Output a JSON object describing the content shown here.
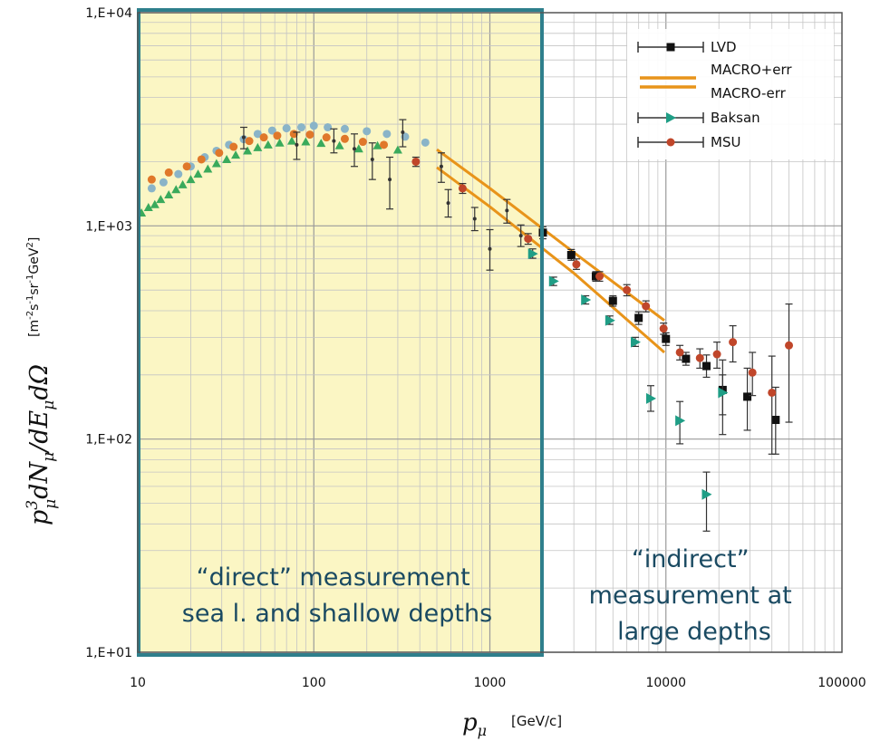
{
  "chart_data": {
    "type": "scatter",
    "x_scale": "log",
    "y_scale": "log",
    "xlim": [
      10,
      100000
    ],
    "ylim": [
      10,
      10000
    ],
    "x_ticks": [
      {
        "value": 10,
        "label": "10"
      },
      {
        "value": 100,
        "label": "100"
      },
      {
        "value": 1000,
        "label": "1000"
      },
      {
        "value": 10000,
        "label": "10000"
      },
      {
        "value": 100000,
        "label": "100000"
      }
    ],
    "y_ticks": [
      {
        "value": 10,
        "label": "1,E+01"
      },
      {
        "value": 100,
        "label": "1,E+02"
      },
      {
        "value": 1000,
        "label": "1,E+03"
      },
      {
        "value": 10000,
        "label": "1,E+04"
      }
    ],
    "ylabel": {
      "lead": "p",
      "sup": "3",
      "sub": "μ",
      "rest": "dN",
      "rest_sub": "μ",
      "tail": "/dE",
      "tail_sub": "μ",
      "end": "dΩ",
      "units_prefix": "[m",
      "units_e1": "-2",
      "units_s": "s",
      "units_e2": "-1",
      "units_sr": "sr",
      "units_e3": "-1",
      "units_gev": "GeV",
      "units_e4": "2",
      "units_suffix": "]"
    },
    "xlabel": {
      "sym": "p",
      "sub": "μ",
      "units": "[GeV/c]"
    },
    "legend": [
      {
        "name": "LVD",
        "marker": "square",
        "color": "#111111"
      },
      {
        "name": "MACRO+err",
        "marker": "line",
        "color": "#e8941a"
      },
      {
        "name": "MACRO-err",
        "marker": "line",
        "color": "#e8941a"
      },
      {
        "name": "Baksan",
        "marker": "triangle-right",
        "color": "#1f9e86"
      },
      {
        "name": "MSU",
        "marker": "circle",
        "color": "#c0462a"
      }
    ],
    "annotations": [
      {
        "id": "direct",
        "lines": [
          "“direct” measurement",
          "sea l. and shallow depths"
        ]
      },
      {
        "id": "indirect",
        "lines": [
          "“indirect”",
          "measurement at",
          "large depths"
        ]
      }
    ],
    "highlight_region": {
      "x_from": 10,
      "x_to": 2000,
      "label_ref": "direct",
      "fill": "#fbf6c4",
      "stroke": "#2e7f8c"
    },
    "series": [
      {
        "name": "LVD",
        "marker": "square",
        "color": "#111111",
        "points": [
          {
            "x": 2000,
            "y": 930,
            "lo": 870,
            "hi": 990
          },
          {
            "x": 2900,
            "y": 730,
            "lo": 690,
            "hi": 775
          },
          {
            "x": 4000,
            "y": 580,
            "lo": 550,
            "hi": 610
          },
          {
            "x": 5000,
            "y": 445,
            "lo": 420,
            "hi": 470
          },
          {
            "x": 7000,
            "y": 370,
            "lo": 345,
            "hi": 395
          },
          {
            "x": 10000,
            "y": 295,
            "lo": 275,
            "hi": 315
          },
          {
            "x": 13000,
            "y": 238,
            "lo": 222,
            "hi": 255
          },
          {
            "x": 17000,
            "y": 220,
            "lo": 195,
            "hi": 248
          },
          {
            "x": 21000,
            "y": 170,
            "lo": 105,
            "hi": 235
          },
          {
            "x": 29000,
            "y": 158,
            "lo": 110,
            "hi": 215
          },
          {
            "x": 42000,
            "y": 123,
            "lo": 85,
            "hi": 175
          }
        ]
      },
      {
        "name": "MSU",
        "marker": "circle",
        "color": "#c0462a",
        "points": [
          {
            "x": 1650,
            "y": 870,
            "lo": 820,
            "hi": 920
          },
          {
            "x": 3100,
            "y": 660,
            "lo": 625,
            "hi": 700
          },
          {
            "x": 4200,
            "y": 580,
            "lo": 550,
            "hi": 610
          },
          {
            "x": 6000,
            "y": 500,
            "lo": 470,
            "hi": 530
          },
          {
            "x": 7700,
            "y": 420,
            "lo": 395,
            "hi": 445
          },
          {
            "x": 9700,
            "y": 330,
            "lo": 310,
            "hi": 350
          },
          {
            "x": 12000,
            "y": 255,
            "lo": 235,
            "hi": 275
          },
          {
            "x": 15600,
            "y": 240,
            "lo": 215,
            "hi": 265
          },
          {
            "x": 19500,
            "y": 250,
            "lo": 215,
            "hi": 285
          },
          {
            "x": 24000,
            "y": 285,
            "lo": 230,
            "hi": 340
          },
          {
            "x": 31000,
            "y": 205,
            "lo": 160,
            "hi": 255
          },
          {
            "x": 40000,
            "y": 165,
            "lo": 85,
            "hi": 245
          },
          {
            "x": 50000,
            "y": 275,
            "lo": 120,
            "hi": 430
          },
          {
            "x": 700,
            "y": 1500,
            "lo": 1420,
            "hi": 1580
          },
          {
            "x": 380,
            "y": 2000,
            "lo": 1900,
            "hi": 2100
          }
        ]
      },
      {
        "name": "Baksan",
        "marker": "triangle-right",
        "color": "#1f9e86",
        "points": [
          {
            "x": 1750,
            "y": 740,
            "lo": 705,
            "hi": 780
          },
          {
            "x": 2300,
            "y": 550,
            "lo": 525,
            "hi": 575
          },
          {
            "x": 3500,
            "y": 450,
            "lo": 430,
            "hi": 470
          },
          {
            "x": 4800,
            "y": 360,
            "lo": 345,
            "hi": 378
          },
          {
            "x": 6700,
            "y": 285,
            "lo": 272,
            "hi": 300
          },
          {
            "x": 8200,
            "y": 155,
            "lo": 135,
            "hi": 178
          },
          {
            "x": 12000,
            "y": 122,
            "lo": 95,
            "hi": 150
          },
          {
            "x": 17000,
            "y": 55,
            "lo": 37,
            "hi": 70
          },
          {
            "x": 21000,
            "y": 165,
            "lo": 130,
            "hi": 200
          }
        ]
      },
      {
        "name": "shallow-green",
        "marker": "triangle-up",
        "color": "#3aaa5c",
        "points": [
          {
            "x": 10.5,
            "y": 1150
          },
          {
            "x": 11.5,
            "y": 1220
          },
          {
            "x": 12.5,
            "y": 1260
          },
          {
            "x": 13.5,
            "y": 1330
          },
          {
            "x": 15,
            "y": 1400
          },
          {
            "x": 16.5,
            "y": 1480
          },
          {
            "x": 18,
            "y": 1560
          },
          {
            "x": 20,
            "y": 1650
          },
          {
            "x": 22,
            "y": 1750
          },
          {
            "x": 25,
            "y": 1850
          },
          {
            "x": 28,
            "y": 1960
          },
          {
            "x": 32,
            "y": 2050
          },
          {
            "x": 36,
            "y": 2150
          },
          {
            "x": 42,
            "y": 2250
          },
          {
            "x": 48,
            "y": 2330
          },
          {
            "x": 55,
            "y": 2400
          },
          {
            "x": 64,
            "y": 2450
          },
          {
            "x": 75,
            "y": 2500
          },
          {
            "x": 90,
            "y": 2480
          },
          {
            "x": 110,
            "y": 2440
          },
          {
            "x": 140,
            "y": 2380
          },
          {
            "x": 180,
            "y": 2300
          },
          {
            "x": 230,
            "y": 2380
          },
          {
            "x": 300,
            "y": 2270
          }
        ]
      },
      {
        "name": "shallow-blue",
        "marker": "circle",
        "color": "#8ab4c8",
        "points": [
          {
            "x": 12,
            "y": 1500
          },
          {
            "x": 14,
            "y": 1600
          },
          {
            "x": 17,
            "y": 1750
          },
          {
            "x": 20,
            "y": 1900
          },
          {
            "x": 24,
            "y": 2100
          },
          {
            "x": 28,
            "y": 2250
          },
          {
            "x": 33,
            "y": 2400
          },
          {
            "x": 40,
            "y": 2550
          },
          {
            "x": 48,
            "y": 2700
          },
          {
            "x": 58,
            "y": 2800
          },
          {
            "x": 70,
            "y": 2870
          },
          {
            "x": 85,
            "y": 2900
          },
          {
            "x": 100,
            "y": 2950
          },
          {
            "x": 120,
            "y": 2900
          },
          {
            "x": 150,
            "y": 2850
          },
          {
            "x": 200,
            "y": 2780
          },
          {
            "x": 260,
            "y": 2700
          },
          {
            "x": 330,
            "y": 2620
          },
          {
            "x": 430,
            "y": 2460
          }
        ]
      },
      {
        "name": "shallow-orange",
        "marker": "circle",
        "color": "#e0782a",
        "points": [
          {
            "x": 12,
            "y": 1650
          },
          {
            "x": 15,
            "y": 1780
          },
          {
            "x": 19,
            "y": 1900
          },
          {
            "x": 23,
            "y": 2050
          },
          {
            "x": 29,
            "y": 2200
          },
          {
            "x": 35,
            "y": 2350
          },
          {
            "x": 43,
            "y": 2500
          },
          {
            "x": 52,
            "y": 2600
          },
          {
            "x": 62,
            "y": 2650
          },
          {
            "x": 77,
            "y": 2700
          },
          {
            "x": 95,
            "y": 2680
          },
          {
            "x": 118,
            "y": 2600
          },
          {
            "x": 150,
            "y": 2560
          },
          {
            "x": 190,
            "y": 2480
          },
          {
            "x": 250,
            "y": 2400
          }
        ]
      },
      {
        "name": "shallow-errorbars",
        "marker": "dot",
        "color": "#333333",
        "points": [
          {
            "x": 40,
            "y": 2600,
            "lo": 2300,
            "hi": 2900
          },
          {
            "x": 80,
            "y": 2400,
            "lo": 2050,
            "hi": 2750
          },
          {
            "x": 130,
            "y": 2500,
            "lo": 2200,
            "hi": 2850
          },
          {
            "x": 170,
            "y": 2300,
            "lo": 1900,
            "hi": 2700
          },
          {
            "x": 215,
            "y": 2050,
            "lo": 1650,
            "hi": 2450
          },
          {
            "x": 270,
            "y": 1650,
            "lo": 1200,
            "hi": 2100
          },
          {
            "x": 320,
            "y": 2750,
            "lo": 2350,
            "hi": 3150
          },
          {
            "x": 530,
            "y": 1900,
            "lo": 1600,
            "hi": 2200
          },
          {
            "x": 580,
            "y": 1280,
            "lo": 1100,
            "hi": 1480
          },
          {
            "x": 820,
            "y": 1080,
            "lo": 950,
            "hi": 1220
          },
          {
            "x": 1000,
            "y": 780,
            "lo": 620,
            "hi": 960
          },
          {
            "x": 1250,
            "y": 1180,
            "lo": 1030,
            "hi": 1330
          },
          {
            "x": 1500,
            "y": 900,
            "lo": 800,
            "hi": 1010
          }
        ]
      }
    ],
    "macro_bands": [
      {
        "name": "MACRO+err",
        "color": "#e8941a",
        "points": [
          {
            "x": 500,
            "y": 2280
          },
          {
            "x": 1000,
            "y": 1500
          },
          {
            "x": 3000,
            "y": 750
          },
          {
            "x": 9800,
            "y": 360
          }
        ]
      },
      {
        "name": "MACRO-err",
        "color": "#e8941a",
        "points": [
          {
            "x": 500,
            "y": 1880
          },
          {
            "x": 1000,
            "y": 1230
          },
          {
            "x": 3000,
            "y": 600
          },
          {
            "x": 9800,
            "y": 255
          }
        ]
      }
    ]
  }
}
